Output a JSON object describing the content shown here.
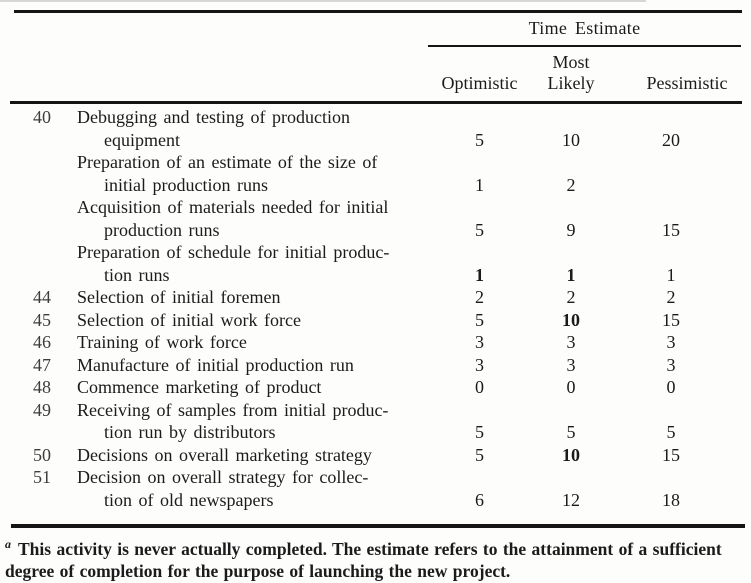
{
  "table": {
    "header": {
      "group_label": "Time Estimate",
      "col_optimistic": "Optimistic",
      "col_most_likely_line1": "Most",
      "col_most_likely_line2": "Likely",
      "col_pessimistic": "Pessimistic"
    },
    "rows": [
      {
        "num": "40",
        "line1": "Debugging and testing of production",
        "line2": "equipment",
        "opt": "5",
        "ml": "10",
        "pess": "20"
      },
      {
        "num": "",
        "line1": "Preparation of an estimate of the size of",
        "line2": "initial production runs",
        "opt": "1",
        "ml": "2",
        "pess": ""
      },
      {
        "num": "",
        "line1": "Acquisition of materials needed for initial",
        "line2": "production runs",
        "opt": "5",
        "ml": "9",
        "pess": "15"
      },
      {
        "num": "",
        "line1": "Preparation of schedule for initial produc-",
        "line2": "tion runs",
        "opt": "1",
        "ml": "1",
        "pess": "1"
      },
      {
        "num": "44",
        "line1": "Selection of initial foremen",
        "opt": "2",
        "ml": "2",
        "pess": "2"
      },
      {
        "num": "45",
        "line1": "Selection of initial work force",
        "opt": "5",
        "ml": "10",
        "pess": "15"
      },
      {
        "num": "46",
        "line1": "Training of work force",
        "opt": "3",
        "ml": "3",
        "pess": "3"
      },
      {
        "num": "47",
        "line1": "Manufacture of initial production run",
        "opt": "3",
        "ml": "3",
        "pess": "3"
      },
      {
        "num": "48",
        "line1": "Commence marketing of product",
        "opt": "0",
        "ml": "0",
        "pess": "0"
      },
      {
        "num": "49",
        "line1": "Receiving of samples from initial produc-",
        "line2": "tion run by distributors",
        "opt": "5",
        "ml": "5",
        "pess": "5"
      },
      {
        "num": "50",
        "line1": "Decisions on overall marketing strategy",
        "opt": "5",
        "ml": "10",
        "pess": "15"
      },
      {
        "num": "51",
        "line1": "Decision on overall strategy for collec-",
        "line2": "tion of old newspapers",
        "opt": "6",
        "ml": "12",
        "pess": "18"
      }
    ],
    "footnote": {
      "marker": "a",
      "line1": "This activity is never actually completed. The estimate refers to the attainment of a sufficient",
      "line2": "degree of completion for the purpose of launching the new project."
    }
  }
}
